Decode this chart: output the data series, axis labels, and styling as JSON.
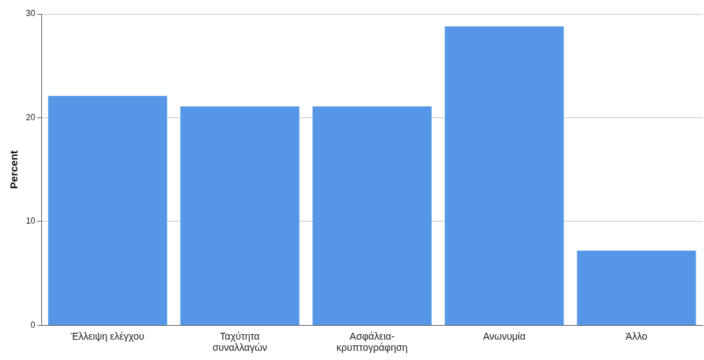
{
  "chart_data": {
    "type": "bar",
    "ylabel": "Percent",
    "categories": [
      "Έλλειψη ελέγχου",
      "Ταχύτητα συναλλαγών",
      "Ασφάλεια-κρυπτογράφηση",
      "Ανωνυμία",
      "Άλλο"
    ],
    "values": [
      22.1,
      21.1,
      21.1,
      28.8,
      7.2
    ],
    "color": "#5596e6",
    "ylim": [
      0,
      30
    ],
    "yticks": [
      0,
      10,
      20,
      30
    ],
    "grid": "y",
    "legend": false
  }
}
